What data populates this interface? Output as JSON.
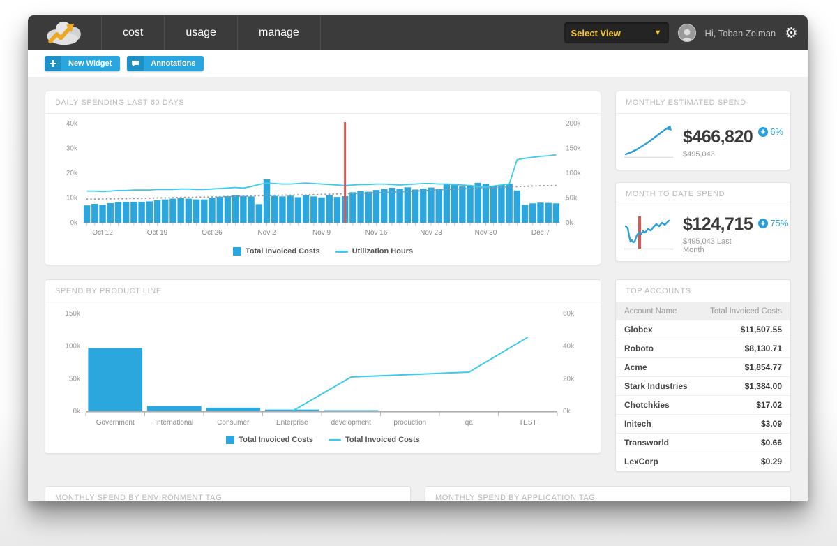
{
  "navbar": {
    "brand_name": "cloud-trend-logo",
    "tabs": [
      {
        "label": "cost"
      },
      {
        "label": "usage"
      },
      {
        "label": "manage"
      }
    ],
    "view_selector": {
      "label": "Select View"
    },
    "greeting": "Hi, Toban Zolman"
  },
  "toolbar": {
    "new_widget_label": "New Widget",
    "annotations_label": "Annotations"
  },
  "widgets": {
    "daily_spending": {
      "title": "DAILY SPENDING LAST 60 DAYS"
    },
    "monthly_estimated": {
      "title": "MONTHLY ESTIMATED SPEND",
      "value": "$466,820",
      "subvalue": "$495,043",
      "badge": "6%"
    },
    "mtd": {
      "title": "MONTH TO DATE SPEND",
      "value": "$124,715",
      "subvalue": "$495,043 Last Month",
      "badge": "75%"
    },
    "product_line": {
      "title": "SPEND BY PRODUCT LINE"
    },
    "top_accounts": {
      "title": "TOP ACCOUNTS",
      "columns": [
        "Account Name",
        "Total Invoiced Costs"
      ],
      "rows": [
        [
          "Globex",
          "$11,507.55"
        ],
        [
          "Roboto",
          "$8,130.71"
        ],
        [
          "Acme",
          "$1,854.77"
        ],
        [
          "Stark Industries",
          "$1,384.00"
        ],
        [
          "Chotchkies",
          "$17.02"
        ],
        [
          "Initech",
          "$3.09"
        ],
        [
          "Transworld",
          "$0.66"
        ],
        [
          "LexCorp",
          "$0.29"
        ]
      ]
    },
    "env_tag": {
      "title": "MONTHLY SPEND BY ENVIRONMENT TAG"
    },
    "app_tag": {
      "title": "MONTHLY SPEND BY APPLICATION TAG"
    }
  },
  "colors": {
    "bar_blue": "#2ba7de",
    "line_cyan": "#3fc9ea",
    "annotation_red": "#e05452",
    "accent_blue": "#2a9fd8",
    "select_view_yellow": "#f7c531",
    "avg_dotted_gray": "#9a9a9a"
  },
  "chart_data": [
    {
      "id": "daily_spending",
      "type": "bar",
      "title": "DAILY SPENDING LAST 60 DAYS",
      "left_axis": {
        "ticks": [
          "40k",
          "30k",
          "20k",
          "10k",
          "0k"
        ],
        "max": 40
      },
      "right_axis": {
        "ticks": [
          "200k",
          "150k",
          "100k",
          "50k",
          "0k"
        ],
        "max": 200
      },
      "x_tick_labels": [
        "Oct 12",
        "Oct 19",
        "Oct 26",
        "Nov 2",
        "Nov 9",
        "Nov 16",
        "Nov 23",
        "Nov 30",
        "Dec 7"
      ],
      "x_tick_indices": [
        2,
        9,
        16,
        23,
        30,
        37,
        44,
        51,
        58
      ],
      "series": [
        {
          "name": "Total Invoiced Costs",
          "kind": "bar",
          "axis": "left",
          "values": [
            7.0,
            7.6,
            7.2,
            7.9,
            8.3,
            8.4,
            8.4,
            8.4,
            8.6,
            9.1,
            9.4,
            9.7,
            9.9,
            9.7,
            9.4,
            9.4,
            10.1,
            10.5,
            10.7,
            11.0,
            10.8,
            10.6,
            7.5,
            17.5,
            10.8,
            10.6,
            10.9,
            10.3,
            11.0,
            10.6,
            10.2,
            11.1,
            10.4,
            10.7,
            12.3,
            12.8,
            12.5,
            13.2,
            13.6,
            14.1,
            13.8,
            14.3,
            13.4,
            13.8,
            14.2,
            13.6,
            15.8,
            15.2,
            14.6,
            15.1,
            16.1,
            15.6,
            14.9,
            15.3,
            15.7,
            13.0,
            7.2,
            7.8,
            8.1,
            8.0,
            7.8
          ]
        },
        {
          "name": "Utilization Hours",
          "kind": "line",
          "axis": "right",
          "values": [
            64,
            64,
            63,
            64,
            65,
            65,
            66,
            66,
            66,
            67,
            67,
            67,
            68,
            68,
            67,
            67,
            68,
            69,
            70,
            71,
            70,
            73,
            77,
            80,
            79,
            78,
            78,
            79,
            80,
            79,
            78,
            77,
            76,
            75,
            76,
            77,
            77,
            78,
            78,
            77,
            76,
            77,
            78,
            79,
            79,
            78,
            78,
            77,
            76,
            75,
            73,
            72,
            74,
            76,
            78,
            127,
            130,
            132,
            134,
            135,
            137
          ]
        },
        {
          "name": "rolling-average",
          "kind": "dotted",
          "axis": "left",
          "values": [
            9.5,
            9.5,
            9.6,
            9.6,
            9.7,
            9.7,
            9.8,
            9.8,
            9.9,
            10.0,
            10.0,
            10.1,
            10.2,
            10.2,
            10.3,
            10.3,
            10.4,
            10.5,
            10.6,
            10.7,
            10.7,
            10.8,
            10.9,
            11.0,
            11.0,
            11.1,
            11.1,
            11.2,
            11.2,
            11.3,
            11.4,
            11.5,
            11.6,
            11.7,
            11.8,
            11.9,
            12.0,
            12.1,
            12.2,
            12.3,
            12.5,
            12.6,
            12.8,
            12.9,
            13.1,
            13.2,
            13.4,
            13.5,
            13.7,
            13.8,
            14.0,
            14.1,
            14.2,
            14.4,
            14.5,
            14.6,
            14.7,
            14.8,
            14.9,
            15.0,
            15.0
          ]
        }
      ],
      "annotation_index": 33,
      "legend": [
        {
          "type": "bar",
          "label": "Total Invoiced Costs"
        },
        {
          "type": "line",
          "label": "Utilization Hours"
        }
      ]
    },
    {
      "id": "product_line",
      "type": "bar",
      "title": "SPEND BY PRODUCT LINE",
      "categories": [
        "Government",
        "International",
        "Consumer",
        "Enterprise",
        "development",
        "production",
        "qa",
        "TEST"
      ],
      "left_axis": {
        "ticks": [
          "150k",
          "100k",
          "50k",
          "0k"
        ],
        "max": 150
      },
      "right_axis": {
        "ticks": [
          "60k",
          "40k",
          "20k",
          "0k"
        ],
        "max": 60
      },
      "series": [
        {
          "name": "Total Invoiced Costs",
          "kind": "bar",
          "axis": "left",
          "values": [
            97,
            8,
            5.5,
            2.5,
            0.4,
            0,
            0,
            0
          ]
        },
        {
          "name": "Total Invoiced Costs",
          "kind": "line",
          "axis": "right",
          "values": [
            null,
            null,
            null,
            0,
            21,
            22.5,
            24,
            45.5
          ]
        }
      ],
      "legend": [
        {
          "type": "bar",
          "label": "Total Invoiced Costs"
        },
        {
          "type": "line",
          "label": "Total Invoiced Costs"
        }
      ]
    },
    {
      "id": "monthly_estimated_sparkline",
      "type": "line",
      "points": [
        [
          6,
          48
        ],
        [
          14,
          45
        ],
        [
          22,
          41
        ],
        [
          30,
          36
        ],
        [
          38,
          31
        ],
        [
          46,
          25
        ],
        [
          54,
          19
        ],
        [
          62,
          13
        ],
        [
          68,
          9
        ]
      ]
    },
    {
      "id": "mtd_sparkline",
      "type": "line",
      "points": [
        [
          6,
          20
        ],
        [
          9,
          23
        ],
        [
          11,
          34
        ],
        [
          13,
          42
        ],
        [
          15,
          40
        ],
        [
          17,
          43
        ],
        [
          19,
          42
        ],
        [
          22,
          33
        ],
        [
          25,
          29
        ],
        [
          28,
          31
        ],
        [
          31,
          27
        ],
        [
          34,
          29
        ],
        [
          38,
          24
        ],
        [
          42,
          26
        ],
        [
          46,
          21
        ],
        [
          50,
          17
        ],
        [
          54,
          20
        ],
        [
          58,
          15
        ],
        [
          62,
          18
        ],
        [
          68,
          12
        ]
      ],
      "annotation_x": 26
    }
  ]
}
